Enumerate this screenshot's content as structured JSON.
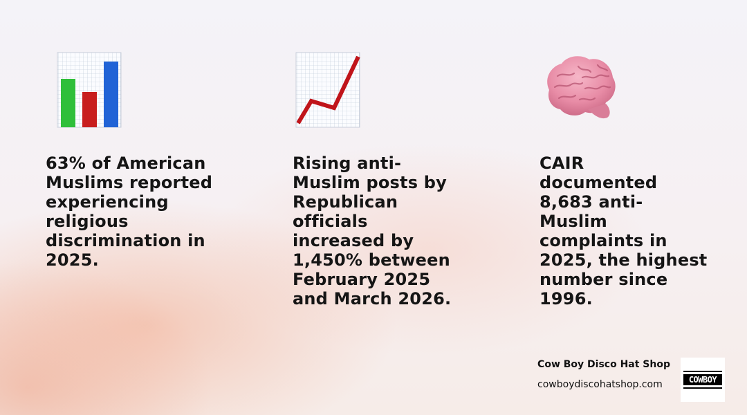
{
  "stats": [
    {
      "icon": "bar-chart-icon",
      "text": "63% of American\nMuslims reported\nexperiencing\nreligious\ndiscrimination in\n2025."
    },
    {
      "icon": "chart-increasing-icon",
      "text": "Rising anti-\nMuslim posts by\nRepublican\nofficials\nincreased by\n1,450% between\nFebruary 2025\nand March 2026."
    },
    {
      "icon": "brain-icon",
      "text": "CAIR\ndocumented\n8,683 anti-\nMuslim\ncomplaints in\n2025, the highest\nnumber since\n1996."
    }
  ],
  "brand": {
    "name": "Cow Boy Disco Hat Shop",
    "url": "cowboydiscohatshop.com",
    "logo_text": "COWBOY"
  },
  "colors": {
    "text": "#151515",
    "bar_green": "#2fbf3a",
    "bar_red": "#c81e1e",
    "bar_blue": "#2163d6",
    "trend_line": "#c0141a",
    "brain": "#e88ca6"
  }
}
